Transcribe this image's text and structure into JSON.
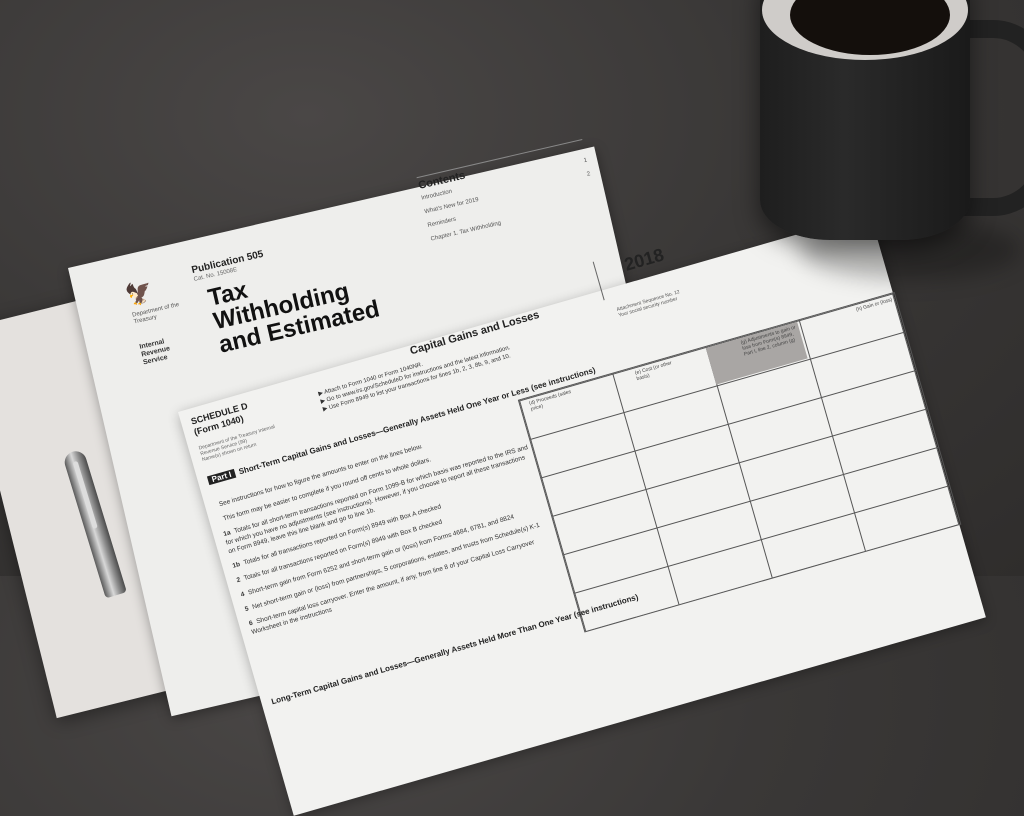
{
  "publication": {
    "dept": "Department of the Treasury",
    "agency": "Internal Revenue Service",
    "label": "Publication 505",
    "cat_no": "Cat. No. 15008E",
    "title_lines": [
      "Tax",
      "Withholding",
      "and Estimated"
    ],
    "contents": {
      "heading": "Contents",
      "items": [
        {
          "label": "Introduction",
          "page": "1"
        },
        {
          "label": "What's New for 2019",
          "page": "2"
        },
        {
          "label": "Reminders",
          "page": ""
        },
        {
          "label": "Chapter 1. Tax Withholding",
          "page": ""
        }
      ]
    }
  },
  "schedule": {
    "name": "SCHEDULE D",
    "form": "(Form 1040)",
    "dept": "Department of the Treasury Internal Revenue Service (99)",
    "names_label": "Name(s) shown on return",
    "title": "Capital Gains and Losses",
    "instructions": [
      "▶ Attach to Form 1040 or Form 1040NR.",
      "▶ Go to www.irs.gov/ScheduleD for instructions and the latest information.",
      "▶ Use Form 8949 to list your transactions for lines 1b, 2, 3, 8b, 9, and 10."
    ],
    "year": "2018",
    "attachment": "Attachment Sequence No. 12",
    "ssn_label": "Your social security number",
    "part1": {
      "tag": "Part I",
      "heading": "Short-Term Capital Gains and Losses—Generally Assets Held One Year or Less",
      "note": "(see instructions)",
      "columns": [
        "(d) Proceeds (sales price)",
        "(e) Cost (or other basis)",
        "(g) Adjustments to gain or loss from Form(s) 8949, Part I, line 2, column (g)",
        "(h) Gain or (loss)"
      ],
      "lines": [
        {
          "num": "",
          "text": "See instructions for how to figure the amounts to enter on the lines below."
        },
        {
          "num": "",
          "text": "This form may be easier to complete if you round off cents to whole dollars."
        },
        {
          "num": "1a",
          "text": "Totals for all short-term transactions reported on Form 1099-B for which basis was reported to the IRS and for which you have no adjustments (see instructions). However, if you choose to report all these transactions on Form 8949, leave this line blank and go to line 1b."
        },
        {
          "num": "1b",
          "text": "Totals for all transactions reported on Form(s) 8949 with Box A checked"
        },
        {
          "num": "2",
          "text": "Totals for all transactions reported on Form(s) 8949 with Box B checked"
        },
        {
          "num": "4",
          "text": "Short-term gain from Form 6252 and short-term gain or (loss) from Forms 4684, 6781, and 8824"
        },
        {
          "num": "5",
          "text": "Net short-term gain or (loss) from partnerships, S corporations, estates, and trusts from Schedule(s) K-1"
        },
        {
          "num": "6",
          "text": "Short-term capital loss carryover. Enter the amount, if any, from line 8 of your Capital Loss Carryover Worksheet in the instructions"
        }
      ]
    },
    "part2_heading": "Long-Term Capital Gains and Losses—Generally Assets Held More Than One Year (see instructions)"
  }
}
